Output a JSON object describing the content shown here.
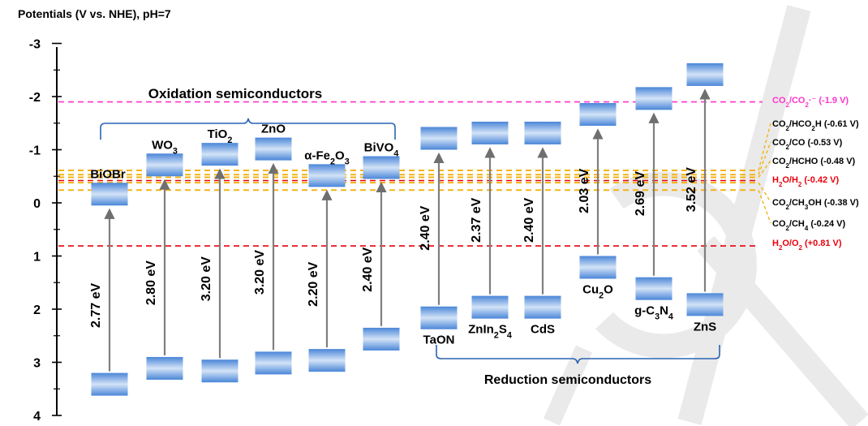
{
  "figure": {
    "title": "Potentials (V vs. NHE), pH=7",
    "y_ticks": [
      "-3",
      "-2",
      "-1",
      "0",
      "1",
      "2",
      "3",
      "4"
    ],
    "groups": {
      "oxidation": "Oxidation semiconductors",
      "reduction": "Reduction semiconductors"
    },
    "colors": {
      "band": "#4a86d8",
      "band_light": "#d3e3f7",
      "arrow": "#7f7f7f",
      "co2_line": "#ff33cc",
      "red_line": "#e8000b",
      "orange_line": "#f2b418",
      "watermark": "#d9d9d9"
    }
  },
  "semiconductors": [
    {
      "name": "BiOBr",
      "cb": 0.05,
      "vb": 3.2,
      "gap": "2.77 eV"
    },
    {
      "name": "WO3",
      "cb": -0.5,
      "vb": 2.9,
      "gap": "2.80 eV"
    },
    {
      "name": "TiO2",
      "cb": -0.7,
      "vb": 2.95,
      "gap": "3.20 eV"
    },
    {
      "name": "ZnO",
      "cb": -0.8,
      "vb": 2.8,
      "gap": "3.20 eV"
    },
    {
      "name": "α-Fe2O3",
      "cb": -0.3,
      "vb": 2.75,
      "gap": "2.20 eV"
    },
    {
      "name": "BiVO4",
      "cb": -0.45,
      "vb": 2.35,
      "gap": "2.40 eV"
    },
    {
      "name": "TaON",
      "cb": -1.0,
      "vb": 1.95,
      "gap": "2.40 eV"
    },
    {
      "name": "ZnIn2S4",
      "cb": -1.1,
      "vb": 1.75,
      "gap": "2.37 eV"
    },
    {
      "name": "CdS",
      "cb": -1.1,
      "vb": 1.75,
      "gap": "2.40 eV"
    },
    {
      "name": "Cu2O",
      "cb": -1.45,
      "vb": 1.0,
      "gap": "2.03 eV"
    },
    {
      "name": "g-C3N4",
      "cb": -1.75,
      "vb": 1.4,
      "gap": "2.69 eV"
    },
    {
      "name": "ZnS",
      "cb": -2.2,
      "vb": 1.7,
      "gap": "3.52 eV"
    }
  ],
  "redox_levels": [
    {
      "label": "CO2/CO2·⁻ (-1.9 V)",
      "potential": -1.9,
      "style": "co2"
    },
    {
      "label": "CO2/HCO2H (-0.61 V)",
      "potential": -0.61,
      "style": "orange"
    },
    {
      "label": "CO2/CO (-0.53 V)",
      "potential": -0.53,
      "style": "orange"
    },
    {
      "label": "CO2/HCHO (-0.48 V)",
      "potential": -0.48,
      "style": "orange"
    },
    {
      "label": "H2O/H2 (-0.42 V)",
      "potential": -0.42,
      "style": "red"
    },
    {
      "label": "CO2/CH3OH (-0.38 V)",
      "potential": -0.38,
      "style": "orange"
    },
    {
      "label": "CO2/CH4 (-0.24 V)",
      "potential": -0.24,
      "style": "orange"
    },
    {
      "label": "H2O/O2 (+0.81 V)",
      "potential": 0.81,
      "style": "red"
    }
  ]
}
